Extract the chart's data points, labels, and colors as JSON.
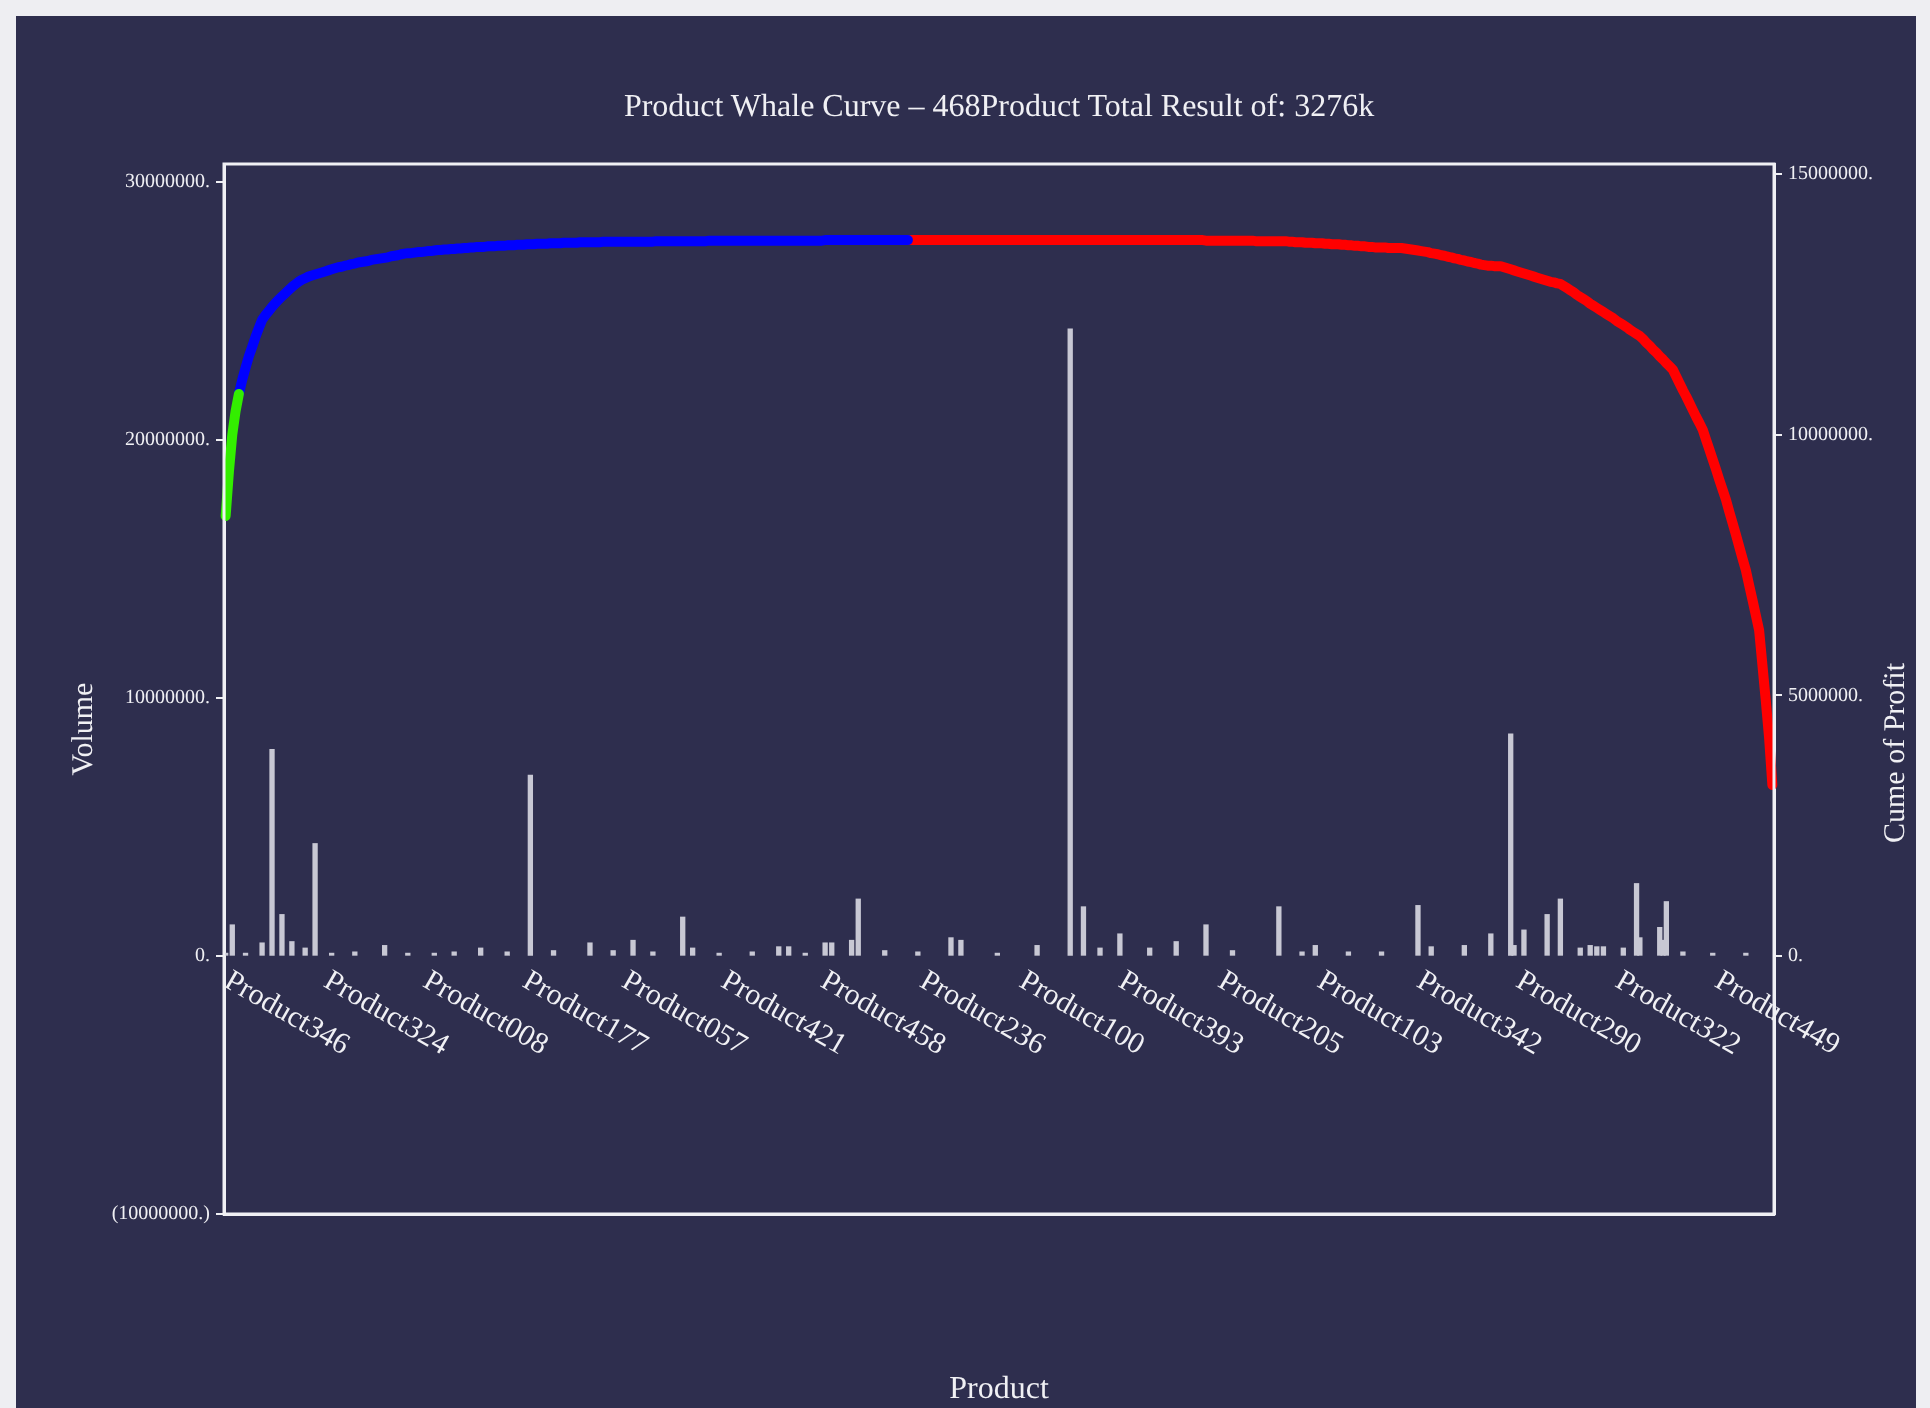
{
  "chart_data": {
    "type": "bar",
    "title": "Product Whale Curve – 468Product Total Result of: 3276k",
    "xlabel": "Product",
    "ylabel": "Volume",
    "y2label": "Cume of Profit",
    "categories": [
      "Product346",
      null,
      null,
      null,
      null,
      null,
      null,
      null,
      null,
      null,
      null,
      null,
      null,
      null,
      null,
      null,
      null,
      null,
      null,
      null,
      null,
      null,
      null,
      null,
      null,
      null,
      null,
      null,
      null,
      null,
      "Product324",
      null,
      null,
      null,
      null,
      null,
      null,
      null,
      null,
      null,
      null,
      null,
      null,
      null,
      null,
      null,
      null,
      null,
      null,
      null,
      null,
      null,
      null,
      null,
      null,
      null,
      null,
      null,
      null,
      null,
      "Product008",
      null,
      null,
      null,
      null,
      null,
      null,
      null,
      null,
      null,
      null,
      null,
      null,
      null,
      null,
      null,
      null,
      null,
      null,
      null,
      null,
      null,
      null,
      null,
      null,
      null,
      null,
      null,
      null,
      null,
      "Product177",
      null,
      null,
      null,
      null,
      null,
      null,
      null,
      null,
      null,
      null,
      null,
      null,
      null,
      null,
      null,
      null,
      null,
      null,
      null,
      null,
      null,
      null,
      null,
      null,
      null,
      null,
      null,
      null,
      null,
      "Product057",
      null,
      null,
      null,
      null,
      null,
      null,
      null,
      null,
      null,
      null,
      null,
      null,
      null,
      null,
      null,
      null,
      null,
      null,
      null,
      null,
      null,
      null,
      null,
      null,
      null,
      null,
      null,
      null,
      null,
      "Product421",
      null,
      null,
      null,
      null,
      null,
      null,
      null,
      null,
      null,
      null,
      null,
      null,
      null,
      null,
      null,
      null,
      null,
      null,
      null,
      null,
      null,
      null,
      null,
      null,
      null,
      null,
      null,
      null,
      null,
      "Product458",
      null,
      null,
      null,
      null,
      null,
      null,
      null,
      null,
      null,
      null,
      null,
      null,
      null,
      null,
      null,
      null,
      null,
      null,
      null,
      null,
      null,
      null,
      null,
      null,
      null,
      null,
      null,
      null,
      null,
      "Product236",
      null,
      null,
      null,
      null,
      null,
      null,
      null,
      null,
      null,
      null,
      null,
      null,
      null,
      null,
      null,
      null,
      null,
      null,
      null,
      null,
      null,
      null,
      null,
      null,
      null,
      null,
      null,
      null,
      null,
      "Product100",
      null,
      null,
      null,
      null,
      null,
      null,
      null,
      null,
      null,
      null,
      null,
      null,
      null,
      null,
      null,
      null,
      null,
      null,
      null,
      null,
      null,
      null,
      null,
      null,
      null,
      null,
      null,
      null,
      null,
      "Product393",
      null,
      null,
      null,
      null,
      null,
      null,
      null,
      null,
      null,
      null,
      null,
      null,
      null,
      null,
      null,
      null,
      null,
      null,
      null,
      null,
      null,
      null,
      null,
      null,
      null,
      null,
      null,
      null,
      null,
      "Product205",
      null,
      null,
      null,
      null,
      null,
      null,
      null,
      null,
      null,
      null,
      null,
      null,
      null,
      null,
      null,
      null,
      null,
      null,
      null,
      null,
      null,
      null,
      null,
      null,
      null,
      null,
      null,
      null,
      null,
      "Product103",
      null,
      null,
      null,
      null,
      null,
      null,
      null,
      null,
      null,
      null,
      null,
      null,
      null,
      null,
      null,
      null,
      null,
      null,
      null,
      null,
      null,
      null,
      null,
      null,
      null,
      null,
      null,
      null,
      null,
      "Product342",
      null,
      null,
      null,
      null,
      null,
      null,
      null,
      null,
      null,
      null,
      null,
      null,
      null,
      null,
      null,
      null,
      null,
      null,
      null,
      null,
      null,
      null,
      null,
      null,
      null,
      null,
      null,
      null,
      null,
      "Product290",
      null,
      null,
      null,
      null,
      null,
      null,
      null,
      null,
      null,
      null,
      null,
      null,
      null,
      null,
      null,
      null,
      null,
      null,
      null,
      null,
      null,
      null,
      null,
      null,
      null,
      null,
      null,
      null,
      null,
      "Product322",
      null,
      null,
      null,
      null,
      null,
      null,
      null,
      null,
      null,
      null,
      null,
      null,
      null,
      null,
      null,
      null,
      null,
      null,
      null,
      null,
      null,
      null,
      null,
      null,
      null,
      null,
      null,
      null,
      null,
      "Product449",
      null,
      null,
      null,
      null,
      null,
      null,
      null,
      null,
      null,
      null,
      null,
      null,
      null,
      null,
      null,
      null,
      null
    ],
    "ylim": [
      -10000000,
      30700000
    ],
    "yticks": [
      {
        "value": -10000000,
        "label": "(10000000.)"
      },
      {
        "value": 0,
        "label": "0."
      },
      {
        "value": 10000000,
        "label": "10000000."
      },
      {
        "value": 20000000,
        "label": "20000000."
      },
      {
        "value": 30000000,
        "label": "30000000."
      }
    ],
    "y2lim": [
      -4950000,
      15190000
    ],
    "y2ticks": [
      {
        "value": 0,
        "label": "0."
      },
      {
        "value": 5000000,
        "label": "5000000."
      },
      {
        "value": 10000000,
        "label": "10000000."
      },
      {
        "value": 15000000,
        "label": "15000000."
      }
    ],
    "grid": false,
    "legend": false,
    "marker": "none",
    "series": [
      {
        "color": "#c8c8d4",
        "values": [
          100000,
          null,
          1200000,
          null,
          null,
          null,
          100000,
          null,
          null,
          null,
          null,
          500000,
          null,
          null,
          8000000,
          null,
          null,
          1600000,
          null,
          null,
          550000,
          null,
          null,
          null,
          300000,
          null,
          null,
          4350000,
          null,
          null,
          null,
          null,
          100000,
          null,
          null,
          null,
          null,
          null,
          null,
          150000,
          null,
          null,
          null,
          null,
          null,
          null,
          null,
          null,
          400000,
          null,
          null,
          null,
          null,
          null,
          null,
          100000,
          null,
          null,
          null,
          null,
          null,
          null,
          null,
          100000,
          null,
          null,
          null,
          null,
          null,
          150000,
          null,
          null,
          null,
          null,
          null,
          null,
          null,
          300000,
          null,
          null,
          null,
          null,
          null,
          null,
          null,
          150000,
          null,
          null,
          null,
          null,
          null,
          null,
          7000000,
          null,
          null,
          null,
          null,
          null,
          null,
          200000,
          null,
          null,
          null,
          null,
          null,
          null,
          null,
          null,
          null,
          null,
          500000,
          null,
          null,
          null,
          null,
          null,
          null,
          200000,
          null,
          null,
          null,
          null,
          null,
          600000,
          null,
          null,
          null,
          null,
          null,
          150000,
          null,
          null,
          null,
          null,
          null,
          null,
          null,
          null,
          1500000,
          null,
          null,
          300000,
          null,
          null,
          null,
          null,
          null,
          null,
          null,
          100000,
          null,
          null,
          null,
          null,
          null,
          null,
          null,
          null,
          null,
          150000,
          null,
          null,
          null,
          null,
          null,
          null,
          null,
          350000,
          null,
          null,
          350000,
          null,
          null,
          null,
          null,
          100000,
          null,
          null,
          null,
          null,
          null,
          500000,
          null,
          500000,
          null,
          null,
          null,
          null,
          null,
          600000,
          null,
          2200000,
          null,
          null,
          null,
          null,
          null,
          null,
          null,
          200000,
          null,
          null,
          null,
          null,
          null,
          null,
          null,
          null,
          null,
          150000,
          null,
          null,
          null,
          null,
          null,
          null,
          null,
          null,
          null,
          700000,
          null,
          null,
          600000,
          null,
          null,
          null,
          null,
          null,
          null,
          null,
          null,
          null,
          null,
          100000,
          null,
          null,
          null,
          null,
          null,
          null,
          null,
          null,
          null,
          null,
          null,
          400000,
          null,
          null,
          null,
          null,
          null,
          null,
          null,
          null,
          null,
          24300000,
          null,
          null,
          null,
          1900000,
          null,
          null,
          null,
          null,
          300000,
          null,
          null,
          null,
          null,
          null,
          850000,
          null,
          null,
          null,
          null,
          null,
          null,
          null,
          null,
          300000,
          null,
          null,
          null,
          null,
          null,
          null,
          null,
          550000,
          null,
          null,
          null,
          null,
          null,
          null,
          null,
          null,
          1200000,
          null,
          null,
          null,
          null,
          null,
          null,
          null,
          200000,
          null,
          null,
          null,
          null,
          null,
          null,
          null,
          null,
          null,
          null,
          null,
          null,
          null,
          1900000,
          null,
          null,
          null,
          null,
          null,
          null,
          150000,
          null,
          null,
          null,
          400000,
          null,
          null,
          null,
          null,
          null,
          null,
          null,
          null,
          null,
          150000,
          null,
          null,
          null,
          null,
          null,
          null,
          null,
          null,
          null,
          150000,
          null,
          null,
          null,
          null,
          null,
          null,
          null,
          null,
          null,
          null,
          1950000,
          null,
          null,
          null,
          350000,
          null,
          null,
          null,
          null,
          null,
          null,
          null,
          null,
          null,
          400000,
          null,
          null,
          null,
          null,
          null,
          null,
          null,
          850000,
          null,
          null,
          null,
          null,
          null,
          8600000,
          400000,
          null,
          null,
          1000000,
          null,
          null,
          null,
          null,
          null,
          null,
          1600000,
          null,
          null,
          null,
          2200000,
          null,
          null,
          null,
          null,
          null,
          300000,
          null,
          null,
          400000,
          null,
          350000,
          null,
          350000,
          null,
          null,
          null,
          null,
          null,
          300000,
          null,
          null,
          null,
          2800000,
          700000,
          null,
          null,
          null,
          null,
          null,
          1100000,
          600000,
          2100000,
          null,
          null,
          null,
          null,
          150000,
          null,
          null,
          null,
          null,
          null,
          null,
          null,
          null,
          100000,
          null,
          null,
          null,
          null,
          null,
          null,
          null,
          null,
          null,
          100000,
          null,
          null,
          null,
          null,
          null,
          null,
          null,
          null
        ]
      },
      {
        "type": "line",
        "axis": "y2",
        "color": "#33ee00",
        "values": [
          8440000,
          9300000,
          10000000,
          10450000,
          10780000,
          null,
          null,
          null,
          null,
          null,
          null,
          null,
          null,
          null,
          null,
          null,
          null,
          null,
          null,
          null,
          null,
          null,
          null,
          null,
          null,
          null,
          null,
          null,
          null,
          null,
          null,
          null,
          null,
          null,
          null,
          null,
          null,
          null,
          null,
          null,
          null,
          null,
          null,
          null,
          null,
          null,
          null,
          null,
          null,
          null,
          null,
          null,
          null,
          null,
          null,
          null,
          null,
          null,
          null,
          null,
          null,
          null,
          null,
          null,
          null,
          null,
          null,
          null,
          null,
          null,
          null,
          null,
          null,
          null,
          null,
          null,
          null,
          null,
          null,
          null,
          null,
          null,
          null,
          null,
          null,
          null,
          null,
          null,
          null,
          null,
          null,
          null,
          null,
          null,
          null,
          null,
          null,
          null,
          null,
          null,
          null,
          null,
          null,
          null,
          null,
          null,
          null,
          null,
          null,
          null,
          null,
          null,
          null,
          null,
          null,
          null,
          null,
          null,
          null,
          null,
          null,
          null,
          null,
          null,
          null,
          null,
          null,
          null,
          null,
          null,
          null,
          null,
          null,
          null,
          null,
          null,
          null,
          null,
          null,
          null,
          null,
          null,
          null,
          null,
          null,
          null,
          null,
          null,
          null,
          null,
          null,
          null,
          null,
          null,
          null,
          null,
          null,
          null,
          null,
          null,
          null,
          null,
          null,
          null,
          null,
          null,
          null,
          null,
          null,
          null,
          null,
          null,
          null,
          null,
          null,
          null,
          null,
          null,
          null,
          null,
          null,
          null,
          null,
          null,
          null,
          null,
          null,
          null,
          null,
          null,
          null,
          null,
          null,
          null,
          null,
          null,
          null,
          null,
          null,
          null,
          null,
          null,
          null,
          null,
          null,
          null,
          null,
          null,
          null,
          null,
          null,
          null,
          null,
          null,
          null,
          null,
          null,
          null,
          null,
          null,
          null,
          null,
          null,
          null,
          null,
          null,
          null,
          null,
          null,
          null,
          null,
          null,
          null,
          null,
          null,
          null,
          null,
          null,
          null,
          null,
          null,
          null,
          null,
          null,
          null,
          null,
          null,
          null,
          null,
          null,
          null,
          null,
          null,
          null,
          null,
          null,
          null,
          null,
          null,
          null,
          null,
          null,
          null,
          null,
          null,
          null,
          null,
          null,
          null,
          null,
          null,
          null,
          null,
          null,
          null,
          null,
          null,
          null,
          null,
          null,
          null,
          null,
          null,
          null,
          null,
          null,
          null,
          null,
          null,
          null,
          null,
          null,
          null,
          null,
          null,
          null,
          null,
          null,
          null,
          null,
          null,
          null,
          null,
          null,
          null,
          null,
          null,
          null,
          null,
          null,
          null,
          null,
          null,
          null,
          null,
          null,
          null,
          null,
          null,
          null,
          null,
          null,
          null,
          null,
          null,
          null,
          null,
          null,
          null,
          null,
          null,
          null,
          null,
          null,
          null,
          null,
          null,
          null,
          null,
          null,
          null,
          null,
          null,
          null,
          null,
          null,
          null,
          null,
          null,
          null,
          null,
          null,
          null,
          null,
          null,
          null,
          null,
          null,
          null,
          null,
          null,
          null,
          null,
          null,
          null,
          null,
          null,
          null,
          null,
          null,
          null,
          null,
          null,
          null,
          null,
          null,
          null,
          null,
          null,
          null,
          null,
          null,
          null,
          null,
          null,
          null,
          null,
          null,
          null,
          null,
          null,
          null,
          null,
          null,
          null,
          null,
          null,
          null,
          null,
          null,
          null,
          null,
          null,
          null,
          null,
          null,
          null,
          null,
          null,
          null,
          null,
          null,
          null,
          null,
          null,
          null,
          null,
          null,
          null,
          null,
          null,
          null,
          null,
          null,
          null,
          null,
          null,
          null,
          null,
          null,
          null,
          null,
          null,
          null,
          null,
          null,
          null,
          null,
          null,
          null,
          null,
          null,
          null,
          null,
          null,
          null,
          null,
          null,
          null,
          null,
          null,
          null,
          null,
          null,
          null,
          null,
          null,
          null,
          null,
          null,
          null,
          null,
          null,
          null,
          null,
          null,
          null,
          null
        ]
      },
      {
        "type": "line",
        "axis": "y2",
        "color": "#0000ff",
        "values": [
          null,
          null,
          null,
          null,
          10780000,
          11050000,
          11280000,
          11500000,
          11680000,
          11870000,
          12040000,
          12200000,
          12290000,
          12370000,
          12450000,
          12520000,
          12590000,
          12650000,
          12710000,
          12770000,
          12830000,
          12880000,
          12930000,
          12970000,
          13000000,
          13030000,
          13050000,
          13070000,
          13090000,
          13110000,
          13130000,
          13150000,
          13170000,
          13190000,
          13210000,
          13220000,
          13240000,
          13250000,
          13270000,
          13280000,
          13300000,
          13310000,
          13320000,
          13330000,
          13350000,
          13360000,
          13370000,
          13380000,
          13390000,
          13400000,
          13420000,
          13430000,
          13440000,
          13460000,
          13470000,
          13480000,
          13480000,
          13490000,
          13500000,
          13500000,
          13510000,
          13520000,
          13520000,
          13530000,
          13540000,
          13540000,
          13550000,
          13550000,
          13560000,
          13560000,
          13570000,
          13570000,
          13580000,
          13580000,
          13590000,
          13590000,
          13600000,
          13600000,
          13600000,
          13610000,
          13610000,
          13610000,
          13620000,
          13620000,
          13620000,
          13630000,
          13630000,
          13630000,
          13640000,
          13640000,
          13640000,
          13650000,
          13650000,
          13650000,
          13660000,
          13660000,
          13660000,
          13660000,
          13670000,
          13670000,
          13670000,
          13670000,
          13680000,
          13680000,
          13680000,
          13680000,
          13680000,
          13690000,
          13690000,
          13690000,
          13690000,
          13690000,
          13690000,
          13690000,
          13700000,
          13700000,
          13700000,
          13700000,
          13700000,
          13700000,
          13700000,
          13700000,
          13700000,
          13700000,
          13700000,
          13700000,
          13700000,
          13700000,
          13700000,
          13700000,
          13710000,
          13710000,
          13710000,
          13710000,
          13710000,
          13710000,
          13710000,
          13710000,
          13710000,
          13710000,
          13710000,
          13710000,
          13710000,
          13710000,
          13710000,
          13710000,
          13720000,
          13720000,
          13720000,
          13720000,
          13720000,
          13720000,
          13720000,
          13720000,
          13720000,
          13720000,
          13720000,
          13720000,
          13720000,
          13720000,
          13720000,
          13720000,
          13720000,
          13720000,
          13720000,
          13720000,
          13720000,
          13720000,
          13720000,
          13720000,
          13720000,
          13720000,
          13720000,
          13720000,
          13720000,
          13720000,
          13720000,
          13720000,
          13720000,
          13720000,
          13720000,
          13730000,
          13730000,
          13730000,
          13730000,
          13730000,
          13730000,
          13730000,
          13730000,
          13730000,
          13730000,
          13730000,
          13730000,
          13730000,
          13730000,
          13730000,
          13730000,
          13730000,
          13730000,
          13730000,
          13730000,
          13730000,
          13730000,
          13730000,
          13730000,
          13730000,
          13730000,
          null,
          null,
          null,
          null,
          null,
          null,
          null,
          null,
          null,
          null,
          null,
          null,
          null,
          null,
          null,
          null,
          null,
          null,
          null,
          null,
          null,
          null,
          null,
          null,
          null,
          null,
          null,
          null,
          null,
          null,
          null,
          null,
          null,
          null,
          null,
          null,
          null,
          null,
          null,
          null,
          null,
          null,
          null,
          null,
          null,
          null,
          null,
          null,
          null,
          null,
          null,
          null,
          null,
          null,
          null,
          null,
          null,
          null,
          null,
          null,
          null,
          null,
          null,
          null,
          null,
          null,
          null,
          null,
          null,
          null,
          null,
          null,
          null,
          null,
          null,
          null,
          null,
          null,
          null,
          null,
          null,
          null,
          null,
          null,
          null,
          null,
          null,
          null,
          null,
          null,
          null,
          null,
          null,
          null,
          null,
          null,
          null,
          null,
          null,
          null,
          null,
          null,
          null,
          null,
          null,
          null,
          null,
          null,
          null,
          null,
          null,
          null,
          null,
          null,
          null,
          null,
          null,
          null,
          null,
          null,
          null,
          null,
          null,
          null,
          null,
          null,
          null,
          null,
          null,
          null,
          null,
          null,
          null,
          null,
          null,
          null,
          null,
          null,
          null,
          null,
          null,
          null,
          null,
          null,
          null,
          null,
          null,
          null,
          null,
          null,
          null,
          null,
          null,
          null,
          null,
          null,
          null,
          null,
          null,
          null,
          null,
          null,
          null,
          null,
          null,
          null,
          null,
          null,
          null,
          null,
          null,
          null,
          null,
          null,
          null,
          null,
          null,
          null,
          null,
          null,
          null,
          null,
          null,
          null,
          null,
          null,
          null,
          null,
          null,
          null,
          null,
          null,
          null,
          null,
          null,
          null,
          null,
          null,
          null,
          null,
          null,
          null,
          null,
          null,
          null,
          null,
          null,
          null,
          null,
          null,
          null,
          null,
          null,
          null,
          null,
          null,
          null,
          null,
          null,
          null,
          null,
          null,
          null,
          null,
          null,
          null,
          null,
          null,
          null,
          null,
          null,
          null,
          null,
          null,
          null,
          null,
          null,
          null,
          null,
          null,
          null,
          null,
          null,
          null,
          null,
          null,
          null,
          null,
          null,
          null,
          null,
          null,
          null,
          null,
          null,
          null,
          null,
          null,
          null,
          null,
          null
        ]
      },
      {
        "type": "line",
        "axis": "y2",
        "color": "#ff0000",
        "values": [
          null,
          null,
          null,
          null,
          null,
          null,
          null,
          null,
          null,
          null,
          null,
          null,
          null,
          null,
          null,
          null,
          null,
          null,
          null,
          null,
          null,
          null,
          null,
          null,
          null,
          null,
          null,
          null,
          null,
          null,
          null,
          null,
          null,
          null,
          null,
          null,
          null,
          null,
          null,
          null,
          null,
          null,
          null,
          null,
          null,
          null,
          null,
          null,
          null,
          null,
          null,
          null,
          null,
          null,
          null,
          null,
          null,
          null,
          null,
          null,
          null,
          null,
          null,
          null,
          null,
          null,
          null,
          null,
          null,
          null,
          null,
          null,
          null,
          null,
          null,
          null,
          null,
          null,
          null,
          null,
          null,
          null,
          null,
          null,
          null,
          null,
          null,
          null,
          null,
          null,
          null,
          null,
          null,
          null,
          null,
          null,
          null,
          null,
          null,
          null,
          null,
          null,
          null,
          null,
          null,
          null,
          null,
          null,
          null,
          null,
          null,
          null,
          null,
          null,
          null,
          null,
          null,
          null,
          null,
          null,
          null,
          null,
          null,
          null,
          null,
          null,
          null,
          null,
          null,
          null,
          null,
          null,
          null,
          null,
          null,
          null,
          null,
          null,
          null,
          null,
          null,
          null,
          null,
          null,
          null,
          null,
          null,
          null,
          null,
          null,
          null,
          null,
          null,
          null,
          null,
          null,
          null,
          null,
          null,
          null,
          null,
          null,
          null,
          null,
          null,
          null,
          null,
          null,
          null,
          null,
          null,
          null,
          null,
          null,
          null,
          null,
          null,
          null,
          null,
          null,
          null,
          null,
          null,
          null,
          null,
          null,
          null,
          null,
          null,
          null,
          null,
          null,
          null,
          null,
          null,
          null,
          null,
          null,
          null,
          null,
          null,
          null,
          null,
          null,
          null,
          null,
          13730000,
          13730000,
          13730000,
          13730000,
          13730000,
          13730000,
          13730000,
          13730000,
          13730000,
          13730000,
          13730000,
          13730000,
          13730000,
          13730000,
          13730000,
          13730000,
          13730000,
          13730000,
          13730000,
          13730000,
          13730000,
          13730000,
          13730000,
          13730000,
          13730000,
          13730000,
          13730000,
          13730000,
          13730000,
          13730000,
          13730000,
          13730000,
          13730000,
          13730000,
          13730000,
          13730000,
          13730000,
          13730000,
          13730000,
          13730000,
          13730000,
          13730000,
          13730000,
          13730000,
          13730000,
          13730000,
          13730000,
          13730000,
          13730000,
          13730000,
          13730000,
          13730000,
          13730000,
          13730000,
          13730000,
          13730000,
          13730000,
          13730000,
          13730000,
          13730000,
          13730000,
          13730000,
          13730000,
          13730000,
          13730000,
          13730000,
          13730000,
          13730000,
          13730000,
          13730000,
          13730000,
          13730000,
          13730000,
          13730000,
          13730000,
          13730000,
          13730000,
          13730000,
          13730000,
          13730000,
          13730000,
          13730000,
          13730000,
          13730000,
          13730000,
          13730000,
          13730000,
          13730000,
          13730000,
          13730000,
          13720000,
          13720000,
          13720000,
          13720000,
          13720000,
          13720000,
          13720000,
          13720000,
          13720000,
          13720000,
          13720000,
          13720000,
          13720000,
          13720000,
          13720000,
          13710000,
          13710000,
          13710000,
          13710000,
          13710000,
          13710000,
          13710000,
          13710000,
          13710000,
          13710000,
          13700000,
          13700000,
          13690000,
          13690000,
          13690000,
          13680000,
          13680000,
          13680000,
          13670000,
          13670000,
          13670000,
          13660000,
          13660000,
          13650000,
          13650000,
          13650000,
          13640000,
          13640000,
          13630000,
          13630000,
          13620000,
          13620000,
          13610000,
          13610000,
          13600000,
          13600000,
          13590000,
          13590000,
          13590000,
          13590000,
          13580000,
          13580000,
          13580000,
          13580000,
          13580000,
          13570000,
          13560000,
          13550000,
          13540000,
          13530000,
          13520000,
          13510000,
          13500000,
          13480000,
          13470000,
          13460000,
          13440000,
          13430000,
          13410000,
          13400000,
          13380000,
          13370000,
          13350000,
          13340000,
          13320000,
          13310000,
          13290000,
          13280000,
          13260000,
          13250000,
          13240000,
          13240000,
          13230000,
          13230000,
          13230000,
          13210000,
          13190000,
          13170000,
          13150000,
          13130000,
          13110000,
          13090000,
          13070000,
          13050000,
          13030000,
          13010000,
          12990000,
          12970000,
          12950000,
          12930000,
          12920000,
          12900000,
          12890000,
          12850000,
          12810000,
          12770000,
          12730000,
          12680000,
          12640000,
          12600000,
          12560000,
          12510000,
          12470000,
          12430000,
          12390000,
          12350000,
          12310000,
          12270000,
          12230000,
          12180000,
          12140000,
          12100000,
          12060000,
          12010000,
          11970000,
          11930000,
          11890000,
          11830000,
          11760000,
          11700000,
          11630000,
          11570000,
          11500000,
          11440000,
          11370000,
          11310000,
          11240000,
          11110000,
          10980000,
          10850000,
          10730000,
          10600000,
          10470000,
          10340000,
          10220000,
          10090000,
          9900000,
          9710000,
          9520000,
          9330000,
          9130000,
          8940000,
          8750000,
          8520000,
          8300000,
          8080000,
          7850000,
          7620000,
          7400000,
          7110000,
          6830000,
          6540000,
          6250000,
          5580000,
          4910000,
          4200000,
          3280000
        ]
      }
    ]
  }
}
